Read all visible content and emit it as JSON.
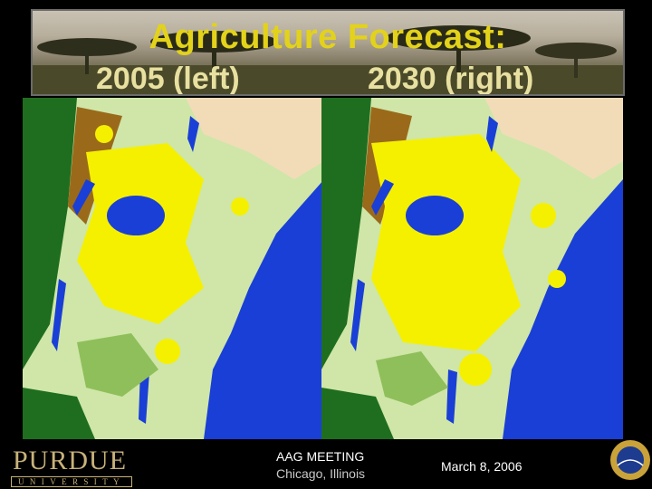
{
  "title": {
    "line1": "Agriculture Forecast:",
    "left_label": "2005 (left)",
    "right_label": "2030 (right)"
  },
  "maps": [
    {
      "year": "2005",
      "description_key": "map-2005"
    },
    {
      "year": "2030",
      "description_key": "map-2030"
    }
  ],
  "colors": {
    "water": "#1a3fd6",
    "agriculture": "#f5f000",
    "forest": "#1f6e1f",
    "grassland": "#cfe6a8",
    "shrub": "#8fbf5a",
    "bare": "#f2dcb8",
    "degraded": "#9a6a1a"
  },
  "footer": {
    "logo_word": "PURDUE",
    "logo_sub": "UNIVERSITY",
    "meeting": "AAG MEETING",
    "place": "Chicago, Illinois",
    "date": "March 8, 2006",
    "nsf_label": "NSF"
  }
}
